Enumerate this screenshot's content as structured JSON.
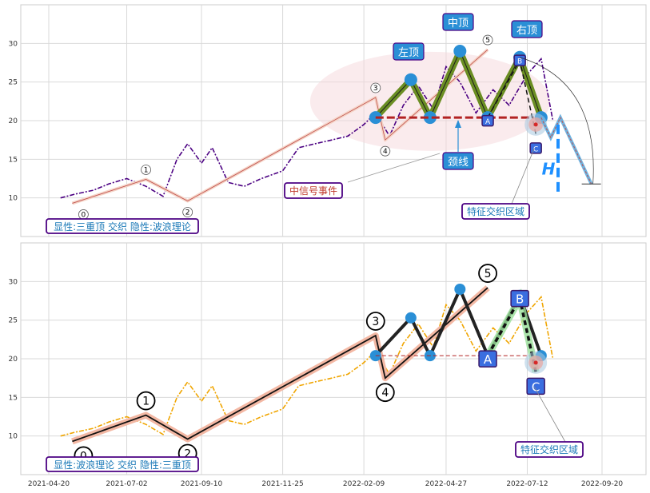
{
  "chart_data": [
    {
      "type": "line",
      "panel": "top",
      "ylim": [
        5,
        35
      ],
      "yticks": [
        10,
        15,
        20,
        25,
        30
      ],
      "grid": true,
      "colors": {
        "price": "#4b0082",
        "wave": "#ff9966",
        "pattern": "#6b8e23",
        "neckline": "#b22222",
        "target": "#1e90ff",
        "badge": "#2a8fd6"
      },
      "price_series": {
        "x": [
          "2021-05-01",
          "2021-05-15",
          "2021-06-01",
          "2021-06-15",
          "2021-07-02",
          "2021-07-20",
          "2021-08-05",
          "2021-08-18",
          "2021-08-28",
          "2021-09-10",
          "2021-09-20",
          "2021-10-05",
          "2021-10-20",
          "2021-11-05",
          "2021-11-25",
          "2021-12-10",
          "2021-12-25",
          "2022-01-10",
          "2022-01-25",
          "2022-02-09",
          "2022-02-20",
          "2022-03-05",
          "2022-03-18",
          "2022-04-01",
          "2022-04-15",
          "2022-04-27",
          "2022-05-10",
          "2022-05-25",
          "2022-06-10",
          "2022-06-25",
          "2022-07-12",
          "2022-07-25",
          "2022-08-05"
        ],
        "y": [
          10,
          10.5,
          11,
          11.8,
          12.5,
          11.5,
          10.2,
          15,
          17,
          14.5,
          16.5,
          12,
          11.5,
          12.5,
          13.5,
          16.5,
          17,
          17.5,
          18,
          19.5,
          21,
          18,
          22,
          24.5,
          21.5,
          27,
          25,
          21,
          24,
          22,
          26,
          28,
          20
        ]
      },
      "wave_points": [
        {
          "x": "2021-05-12",
          "y": 9.3,
          "label": "0"
        },
        {
          "x": "2021-07-20",
          "y": 12.4,
          "label": "1"
        },
        {
          "x": "2021-08-28",
          "y": 9.6,
          "label": "2"
        },
        {
          "x": "2022-02-20",
          "y": 23,
          "label": "3"
        },
        {
          "x": "2022-03-01",
          "y": 17.5,
          "label": "4"
        },
        {
          "x": "2022-06-05",
          "y": 29.2,
          "label": "5"
        }
      ],
      "pattern_points": [
        {
          "x": "2022-02-20",
          "y": 20.4
        },
        {
          "x": "2022-03-25",
          "y": 25.3
        },
        {
          "x": "2022-04-12",
          "y": 20.4
        },
        {
          "x": "2022-05-10",
          "y": 29
        },
        {
          "x": "2022-06-05",
          "y": 20.4
        },
        {
          "x": "2022-07-05",
          "y": 28.2
        },
        {
          "x": "2022-07-25",
          "y": 20.4
        }
      ],
      "abc": [
        {
          "x": "2022-06-05",
          "y": 20.4,
          "label": "A"
        },
        {
          "x": "2022-07-05",
          "y": 27.8,
          "label": "B"
        },
        {
          "x": "2022-07-20",
          "y": 18.3,
          "label": "C"
        }
      ],
      "neckline_y": 20.4,
      "target_y": 11.8,
      "annotations": {
        "left_top": "左顶",
        "mid_top": "中顶",
        "right_top": "右顶",
        "neckline": "颈线",
        "event": "中信号事件",
        "zone": "特征交织区域",
        "h": "H",
        "caption": "显性:三重顶 交织 隐性:波浪理论"
      }
    },
    {
      "type": "line",
      "panel": "bottom",
      "ylim": [
        5,
        35
      ],
      "yticks": [
        10,
        15,
        20,
        25,
        30
      ],
      "grid": true,
      "colors": {
        "price": "#f0a500",
        "wave": "#e8b0a0",
        "pattern": "#222222",
        "neckline": "#b22222",
        "abc": "#98e098",
        "badge": "#3a6ee0"
      },
      "xticks": [
        "2021-04-20",
        "2021-07-02",
        "2021-09-10",
        "2021-11-25",
        "2022-02-09",
        "2022-04-27",
        "2022-07-12",
        "2022-09-20"
      ],
      "wave_points": [
        {
          "x": "2021-05-12",
          "y": 9.3,
          "label": "0"
        },
        {
          "x": "2021-07-20",
          "y": 12.7,
          "label": "1"
        },
        {
          "x": "2021-08-28",
          "y": 9.6,
          "label": "2"
        },
        {
          "x": "2022-02-20",
          "y": 23,
          "label": "3"
        },
        {
          "x": "2022-03-01",
          "y": 17.5,
          "label": "4"
        },
        {
          "x": "2022-06-05",
          "y": 29.2,
          "label": "5"
        }
      ],
      "pattern_points": [
        {
          "x": "2022-02-20",
          "y": 20.4
        },
        {
          "x": "2022-03-25",
          "y": 25.3
        },
        {
          "x": "2022-04-12",
          "y": 20.4
        },
        {
          "x": "2022-05-10",
          "y": 29
        },
        {
          "x": "2022-06-05",
          "y": 20.4
        },
        {
          "x": "2022-07-05",
          "y": 28.2
        },
        {
          "x": "2022-07-25",
          "y": 20.4
        }
      ],
      "abc": [
        {
          "x": "2022-06-05",
          "y": 20.4,
          "label": "A"
        },
        {
          "x": "2022-07-05",
          "y": 27.8,
          "label": "B"
        },
        {
          "x": "2022-07-20",
          "y": 18.3,
          "label": "C"
        }
      ],
      "neckline_y": 20.4,
      "annotations": {
        "zone": "特征交织区域",
        "caption": "显性:波浪理论 交织 隐性:三重顶"
      }
    }
  ]
}
